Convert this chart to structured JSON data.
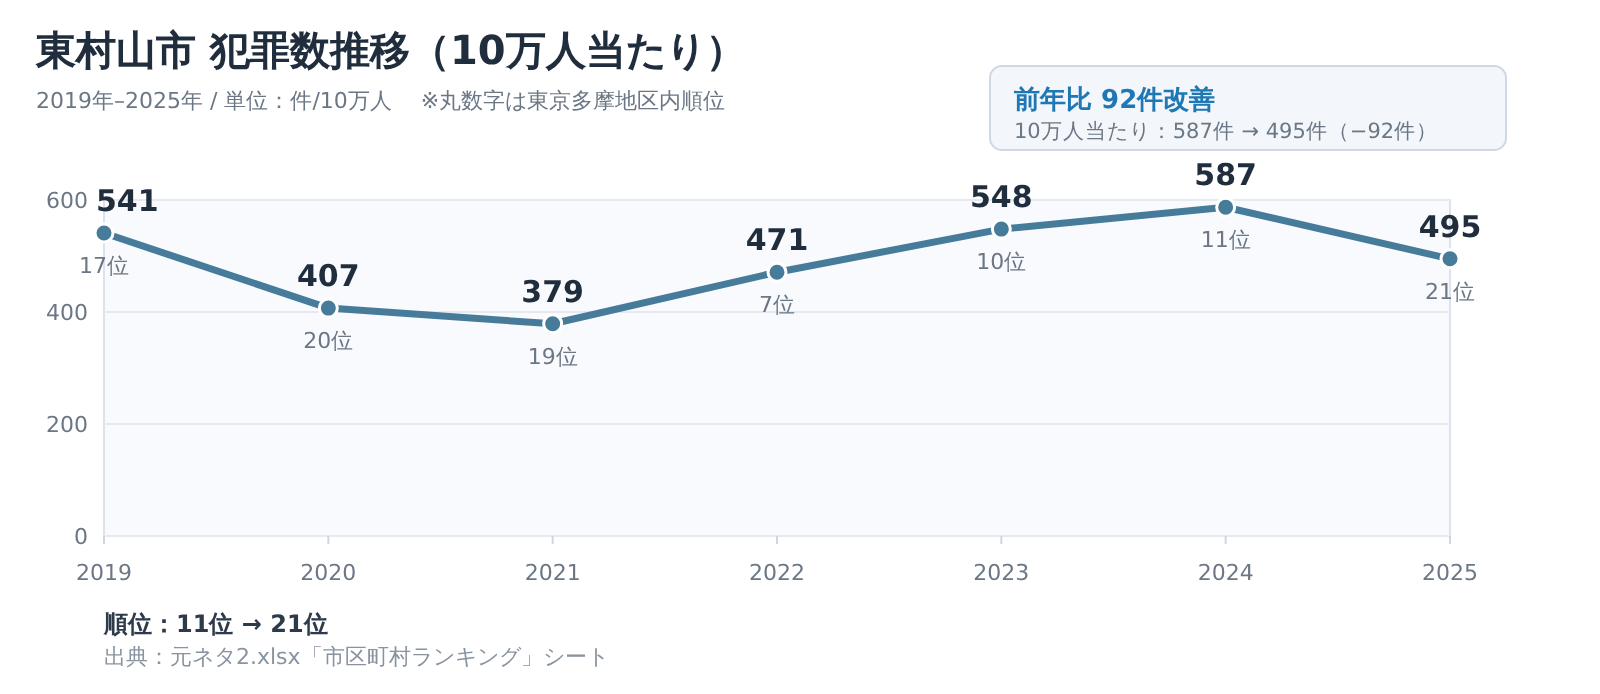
{
  "chart_data": {
    "type": "line",
    "title": "東村山市  犯罪数推移（10万人当たり）",
    "subtitle": "2019年–2025年 / 単位：件/10万人　 ※丸数字は東京多摩地区内順位",
    "categories": [
      "2019",
      "2020",
      "2021",
      "2022",
      "2023",
      "2024",
      "2025"
    ],
    "series": [
      {
        "color": "#467b9a",
        "values": [
          541,
          407,
          379,
          471,
          548,
          587,
          495
        ]
      }
    ],
    "ylim": [
      0,
      600
    ],
    "yticks": [
      0,
      200,
      400,
      600
    ],
    "grid": "y",
    "marker": "circle",
    "line_style": "solid",
    "data_labels": true,
    "annotations": [
      {
        "text": "17位",
        "x": "2019",
        "y": 541
      },
      {
        "text": "20位",
        "x": "2020",
        "y": 407
      },
      {
        "text": "19位",
        "x": "2021",
        "y": 379
      },
      {
        "text": "7位",
        "x": "2022",
        "y": 471
      },
      {
        "text": "10位",
        "x": "2023",
        "y": 548
      },
      {
        "text": "11位",
        "x": "2024",
        "y": 587
      },
      {
        "text": "21位",
        "x": "2025",
        "y": 495
      },
      "前年比  92件改善",
      "10万人当たり：587件 → 495件（−92件）",
      "順位：11位 → 21位",
      "出典：元ネタ2.xlsx「市区町村ランキング」シート"
    ]
  }
}
